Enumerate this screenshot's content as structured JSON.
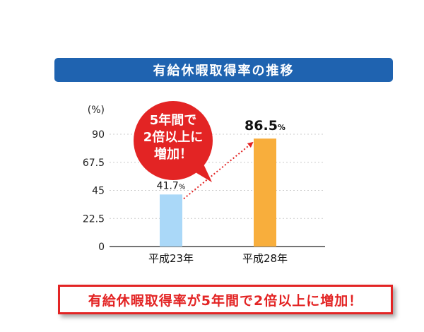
{
  "header": {
    "title": "有給休暇取得率の推移"
  },
  "callout": {
    "lines": [
      "5年間で",
      "2倍以上に",
      "増加！"
    ]
  },
  "colors": {
    "bar1": "#aad8f8",
    "bar2": "#f8ae3c",
    "accent": "#e32424",
    "title_bg": "#1f63b0"
  },
  "chart_data": {
    "type": "bar",
    "ylabel": "(%)",
    "ylim": [
      0,
      90
    ],
    "yticks": [
      "0",
      "22.5",
      "45",
      "67.5",
      "90"
    ],
    "categories": [
      "平成23年",
      "平成28年"
    ],
    "values": [
      41.7,
      86.5
    ],
    "value_labels": [
      {
        "number": "41.7",
        "unit": "%"
      },
      {
        "number": "86.5",
        "unit": "%"
      }
    ],
    "grid": true
  },
  "footer": {
    "text": "有給休暇取得率が5年間で2倍以上に増加！"
  }
}
